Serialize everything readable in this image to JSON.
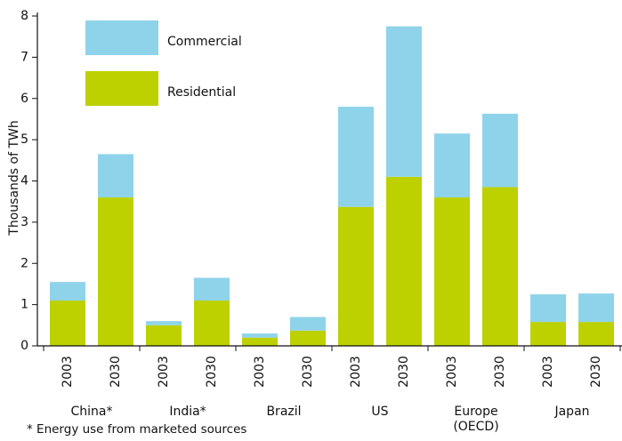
{
  "chart_data": {
    "type": "stacked_bar",
    "y_label": "Thousands of TWh",
    "footnote": "* Energy use from marketed sources",
    "categories": [
      "2003",
      "2030",
      "2003",
      "2030",
      "2003",
      "2030",
      "2003",
      "2030",
      "2003",
      "2030",
      "2003",
      "2030"
    ],
    "groups": [
      "China*",
      "India*",
      "Brazil",
      "US",
      "Europe (OECD)",
      "Japan"
    ],
    "series": [
      {
        "name": "Residential",
        "color": "#bdd000",
        "values": [
          1.1,
          3.6,
          0.5,
          1.1,
          0.2,
          0.37,
          3.37,
          4.1,
          3.6,
          3.85,
          0.58,
          0.58
        ]
      },
      {
        "name": "Commercial",
        "color": "#8fd3ea",
        "values": [
          0.45,
          1.05,
          0.1,
          0.55,
          0.1,
          0.33,
          2.43,
          3.65,
          1.55,
          1.78,
          0.67,
          0.69
        ]
      }
    ],
    "ylim": [
      0,
      8
    ],
    "yticks": [
      0,
      1,
      2,
      3,
      4,
      5,
      6,
      7,
      8
    ]
  }
}
